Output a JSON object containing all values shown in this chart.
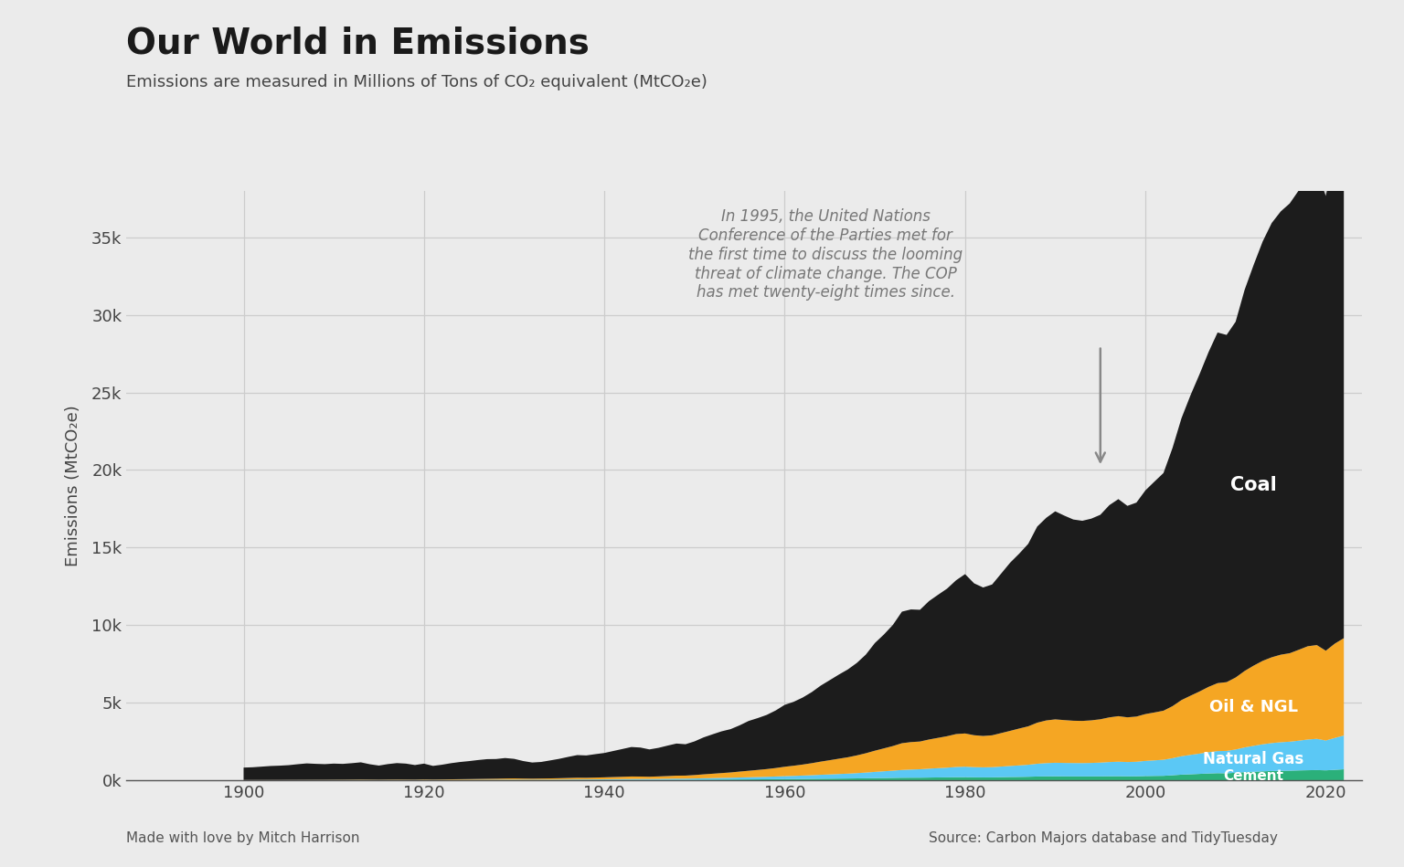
{
  "title": "Our World in Emissions",
  "subtitle": "Emissions are measured in Millions of Tons of CO₂ equivalent (MtCO₂e)",
  "ylabel": "Emissions (MtCO₂e)",
  "footer_left": "Made with love by Mitch Harrison",
  "footer_right": "Source: Carbon Majors database and TidyTuesday",
  "annotation_text": "In 1995, the United Nations\nConference of the Parties met for\nthe first time to discuss the looming\nthreat of climate change. The COP\nhas met twenty-eight times since.",
  "annotation_year": 1995,
  "colors": {
    "coal": "#1c1c1c",
    "oil": "#F5A623",
    "gas": "#5BC8F5",
    "cement": "#2BB07A",
    "background": "#ebebeb",
    "grid": "#d8d8d8"
  },
  "years": [
    1900,
    1901,
    1902,
    1903,
    1904,
    1905,
    1906,
    1907,
    1908,
    1909,
    1910,
    1911,
    1912,
    1913,
    1914,
    1915,
    1916,
    1917,
    1918,
    1919,
    1920,
    1921,
    1922,
    1923,
    1924,
    1925,
    1926,
    1927,
    1928,
    1929,
    1930,
    1931,
    1932,
    1933,
    1934,
    1935,
    1936,
    1937,
    1938,
    1939,
    1940,
    1941,
    1942,
    1943,
    1944,
    1945,
    1946,
    1947,
    1948,
    1949,
    1950,
    1951,
    1952,
    1953,
    1954,
    1955,
    1956,
    1957,
    1958,
    1959,
    1960,
    1961,
    1962,
    1963,
    1964,
    1965,
    1966,
    1967,
    1968,
    1969,
    1970,
    1971,
    1972,
    1973,
    1974,
    1975,
    1976,
    1977,
    1978,
    1979,
    1980,
    1981,
    1982,
    1983,
    1984,
    1985,
    1986,
    1987,
    1988,
    1989,
    1990,
    1991,
    1992,
    1993,
    1994,
    1995,
    1996,
    1997,
    1998,
    1999,
    2000,
    2001,
    2002,
    2003,
    2004,
    2005,
    2006,
    2007,
    2008,
    2009,
    2010,
    2011,
    2012,
    2013,
    2014,
    2015,
    2016,
    2017,
    2018,
    2019,
    2020,
    2021,
    2022
  ],
  "cement": [
    5,
    5,
    5,
    5,
    5,
    6,
    6,
    6,
    7,
    7,
    8,
    8,
    9,
    10,
    9,
    8,
    9,
    9,
    8,
    8,
    10,
    9,
    10,
    12,
    13,
    14,
    15,
    16,
    17,
    18,
    19,
    17,
    16,
    17,
    18,
    19,
    21,
    23,
    22,
    24,
    25,
    27,
    28,
    30,
    29,
    27,
    29,
    31,
    33,
    32,
    36,
    40,
    43,
    47,
    50,
    54,
    58,
    62,
    66,
    71,
    78,
    82,
    87,
    93,
    100,
    105,
    111,
    116,
    123,
    131,
    140,
    148,
    156,
    165,
    168,
    169,
    177,
    184,
    191,
    200,
    200,
    193,
    188,
    191,
    202,
    213,
    219,
    229,
    244,
    254,
    258,
    255,
    252,
    250,
    252,
    255,
    260,
    263,
    257,
    260,
    274,
    283,
    289,
    325,
    364,
    388,
    413,
    440,
    459,
    450,
    488,
    524,
    551,
    577,
    599,
    613,
    622,
    638,
    649,
    659,
    642,
    675,
    710
  ],
  "gas": [
    5,
    5,
    5,
    5,
    5,
    6,
    6,
    7,
    7,
    7,
    8,
    8,
    9,
    10,
    9,
    8,
    9,
    10,
    10,
    10,
    12,
    11,
    12,
    13,
    14,
    15,
    17,
    18,
    19,
    22,
    24,
    22,
    22,
    24,
    26,
    28,
    31,
    34,
    35,
    37,
    42,
    46,
    50,
    55,
    58,
    59,
    63,
    68,
    74,
    76,
    82,
    91,
    99,
    108,
    115,
    127,
    138,
    149,
    160,
    175,
    192,
    204,
    219,
    236,
    256,
    274,
    294,
    313,
    339,
    368,
    402,
    434,
    465,
    502,
    527,
    545,
    574,
    599,
    623,
    659,
    678,
    657,
    649,
    657,
    682,
    712,
    742,
    773,
    822,
    853,
    872,
    864,
    861,
    860,
    867,
    886,
    916,
    935,
    920,
    935,
    978,
    1003,
    1036,
    1100,
    1188,
    1251,
    1307,
    1369,
    1424,
    1445,
    1498,
    1595,
    1672,
    1745,
    1800,
    1840,
    1867,
    1916,
    1981,
    2014,
    1924,
    2054,
    2178
  ],
  "oil": [
    10,
    10,
    11,
    12,
    13,
    14,
    15,
    16,
    17,
    18,
    20,
    22,
    25,
    28,
    26,
    23,
    27,
    30,
    28,
    25,
    33,
    28,
    32,
    38,
    43,
    48,
    54,
    60,
    66,
    75,
    80,
    73,
    68,
    72,
    78,
    87,
    98,
    108,
    105,
    114,
    124,
    137,
    149,
    161,
    155,
    145,
    159,
    175,
    192,
    196,
    220,
    253,
    282,
    311,
    342,
    381,
    419,
    457,
    497,
    545,
    604,
    654,
    710,
    775,
    849,
    918,
    987,
    1056,
    1144,
    1246,
    1367,
    1476,
    1588,
    1724,
    1768,
    1786,
    1879,
    1953,
    2028,
    2121,
    2141,
    2056,
    2021,
    2053,
    2160,
    2263,
    2376,
    2477,
    2648,
    2752,
    2797,
    2762,
    2727,
    2717,
    2746,
    2793,
    2880,
    2936,
    2882,
    2914,
    3018,
    3087,
    3161,
    3353,
    3621,
    3815,
    4006,
    4213,
    4380,
    4432,
    4640,
    4929,
    5169,
    5378,
    5530,
    5643,
    5703,
    5859,
    6011,
    6044,
    5787,
    6082,
    6274
  ],
  "coal": [
    800,
    820,
    860,
    900,
    920,
    950,
    1010,
    1060,
    1030,
    1010,
    1040,
    1020,
    1060,
    1110,
    990,
    910,
    1000,
    1060,
    1030,
    940,
    1020,
    880,
    950,
    1040,
    1110,
    1160,
    1220,
    1270,
    1270,
    1320,
    1260,
    1130,
    1040,
    1070,
    1160,
    1250,
    1360,
    1460,
    1440,
    1510,
    1570,
    1680,
    1790,
    1900,
    1870,
    1760,
    1840,
    1960,
    2070,
    2020,
    2170,
    2380,
    2540,
    2690,
    2790,
    2980,
    3210,
    3340,
    3490,
    3710,
    3990,
    4120,
    4320,
    4580,
    4900,
    5160,
    5420,
    5660,
    5960,
    6360,
    6940,
    7340,
    7810,
    8480,
    8550,
    8490,
    8920,
    9220,
    9510,
    9910,
    10270,
    9790,
    9570,
    9720,
    10280,
    10840,
    11270,
    11760,
    12640,
    13060,
    13410,
    13180,
    12970,
    12900,
    13000,
    13180,
    13680,
    13990,
    13630,
    13790,
    14420,
    14880,
    15320,
    16640,
    18170,
    19370,
    20450,
    21580,
    22600,
    22380,
    22930,
    24570,
    25830,
    27030,
    27990,
    28570,
    28990,
    29610,
    30550,
    30630,
    29310,
    31590,
    34000
  ],
  "xlim": [
    1887,
    2024
  ],
  "ylim": [
    0,
    38000
  ],
  "xticks": [
    1900,
    1920,
    1940,
    1960,
    1980,
    2000,
    2020
  ],
  "yticks": [
    0,
    5000,
    10000,
    15000,
    20000,
    25000,
    30000,
    35000
  ],
  "ytick_labels": [
    "0k",
    "5k",
    "10k",
    "15k",
    "20k",
    "25k",
    "30k",
    "35k"
  ]
}
